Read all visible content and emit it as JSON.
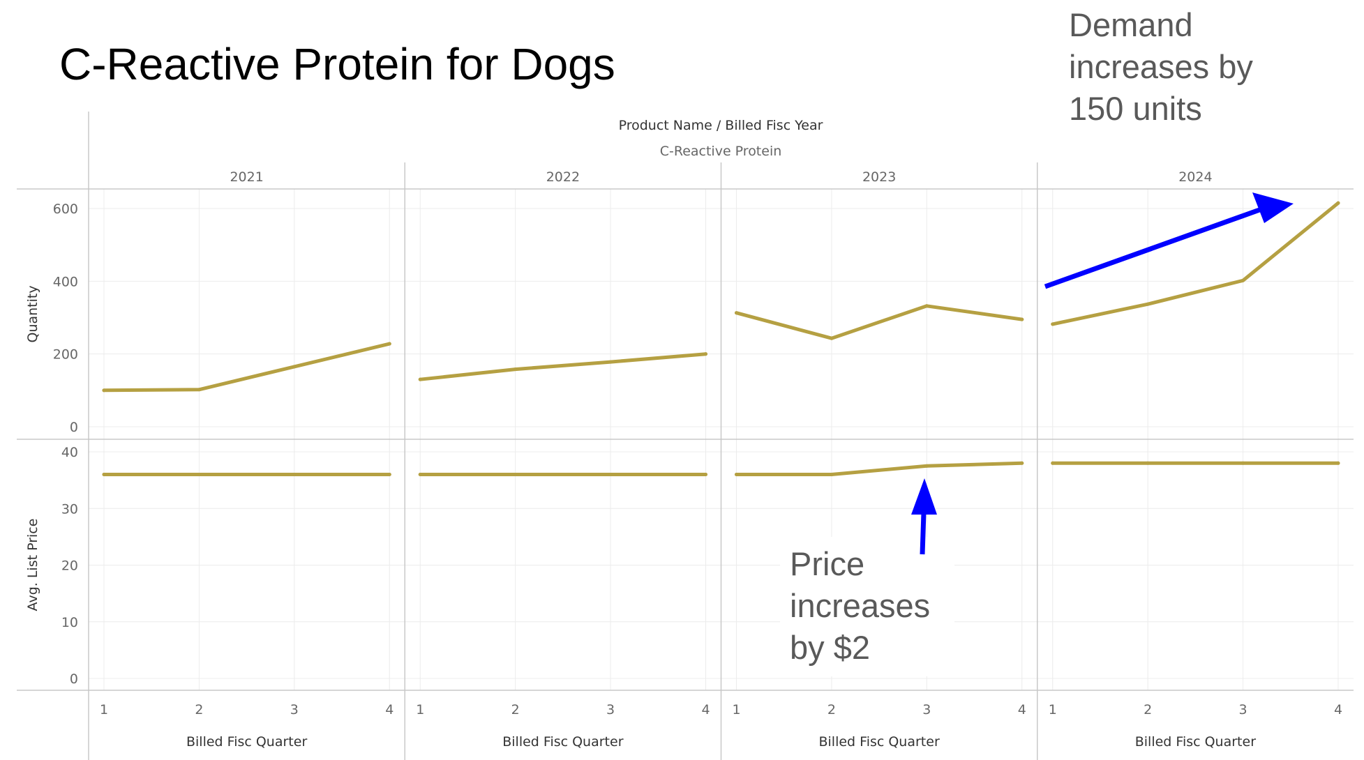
{
  "page": {
    "title": "C-Reactive Protein for Dogs"
  },
  "annotations": {
    "demand": [
      "Demand",
      "increases by",
      "150 units"
    ],
    "price": [
      "Price",
      "increases",
      "by $2"
    ],
    "arrow_color": "#0000ff"
  },
  "chart_data": {
    "type": "line",
    "header": "Product Name / Billed Fisc Year",
    "product": "C-Reactive Protein",
    "years": [
      "2021",
      "2022",
      "2023",
      "2024"
    ],
    "xlabel": "Billed Fisc Quarter",
    "quarters": [
      "1",
      "2",
      "3",
      "4"
    ],
    "line_color": "#b5a042",
    "grid": true,
    "panes": [
      {
        "ylabel": "Quantity",
        "ylim": [
          0,
          630
        ],
        "yticks": [
          0,
          200,
          400,
          600
        ],
        "series": [
          {
            "values": [
              100,
              102,
              165,
              228
            ]
          },
          {
            "values": [
              130,
              158,
              178,
              200
            ]
          },
          {
            "values": [
              313,
              243,
              332,
              295
            ]
          },
          {
            "values": [
              282,
              337,
              402,
              615
            ]
          }
        ]
      },
      {
        "ylabel": "Avg. List Price",
        "ylim": [
          0,
          42
        ],
        "yticks": [
          0,
          10,
          20,
          30,
          40
        ],
        "series": [
          {
            "values": [
              36,
              36,
              36,
              36
            ]
          },
          {
            "values": [
              36,
              36,
              36,
              36
            ]
          },
          {
            "values": [
              36,
              36,
              37.5,
              38
            ]
          },
          {
            "values": [
              38,
              38,
              38,
              38
            ]
          }
        ]
      }
    ]
  }
}
